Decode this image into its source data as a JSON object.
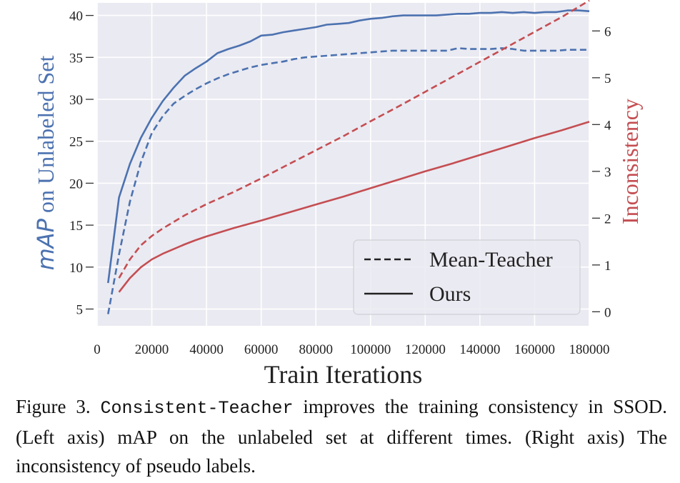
{
  "chart_data": {
    "type": "line",
    "xlabel": "Train Iterations",
    "ylabel_left_italic": "mAP",
    "ylabel_left_rest": " on Unlabeled Set",
    "ylabel_right": "Inconsistency",
    "xlim": [
      0,
      180000
    ],
    "ylim_left": [
      3,
      41.5
    ],
    "ylim_right": [
      -0.3,
      6.6
    ],
    "xticks": [
      0,
      20000,
      40000,
      60000,
      80000,
      100000,
      120000,
      140000,
      160000,
      180000
    ],
    "yticks_left": [
      5,
      10,
      15,
      20,
      25,
      30,
      35,
      40
    ],
    "yticks_right": [
      0,
      1,
      2,
      3,
      4,
      5,
      6
    ],
    "grid": true,
    "legend_position": "bottom-right",
    "legend": [
      {
        "label": "Mean-Teacher",
        "style": "dashed"
      },
      {
        "label": "Ours",
        "style": "solid"
      }
    ],
    "colors": {
      "map": "#4c72b0",
      "inconsistency": "#c44e52",
      "background": "#eaeaf2"
    },
    "series": [
      {
        "metric": "mAP",
        "axis": "left",
        "method": "Ours",
        "style": "solid",
        "x": [
          4000,
          8000,
          12000,
          16000,
          20000,
          24000,
          28000,
          32000,
          36000,
          40000,
          44000,
          48000,
          52000,
          56000,
          60000,
          64000,
          68000,
          72000,
          76000,
          80000,
          84000,
          88000,
          92000,
          96000,
          100000,
          104000,
          108000,
          112000,
          116000,
          120000,
          124000,
          128000,
          132000,
          136000,
          140000,
          144000,
          148000,
          152000,
          156000,
          160000,
          164000,
          168000,
          172000,
          176000,
          180000
        ],
        "y": [
          8.1,
          18.3,
          22.3,
          25.4,
          27.8,
          29.8,
          31.4,
          32.8,
          33.7,
          34.5,
          35.5,
          36.0,
          36.4,
          36.9,
          37.6,
          37.7,
          38.0,
          38.2,
          38.4,
          38.6,
          38.9,
          39.0,
          39.1,
          39.4,
          39.6,
          39.7,
          39.9,
          40.0,
          40.0,
          40.0,
          40.0,
          40.1,
          40.2,
          40.2,
          40.3,
          40.3,
          40.4,
          40.3,
          40.4,
          40.3,
          40.4,
          40.4,
          40.6,
          40.6,
          40.5
        ]
      },
      {
        "metric": "mAP",
        "axis": "left",
        "method": "Mean-Teacher",
        "style": "dashed",
        "x": [
          4000,
          8000,
          12000,
          16000,
          20000,
          24000,
          28000,
          32000,
          36000,
          40000,
          44000,
          48000,
          52000,
          56000,
          60000,
          64000,
          68000,
          72000,
          76000,
          80000,
          84000,
          88000,
          92000,
          96000,
          100000,
          104000,
          108000,
          112000,
          116000,
          120000,
          124000,
          128000,
          132000,
          136000,
          140000,
          144000,
          148000,
          152000,
          156000,
          160000,
          164000,
          168000,
          172000,
          176000,
          180000
        ],
        "y": [
          4.4,
          11.5,
          17.8,
          22.5,
          26.0,
          28.0,
          29.5,
          30.4,
          31.2,
          31.9,
          32.5,
          33.0,
          33.4,
          33.8,
          34.1,
          34.3,
          34.5,
          34.8,
          35.0,
          35.1,
          35.2,
          35.3,
          35.4,
          35.5,
          35.6,
          35.7,
          35.8,
          35.8,
          35.8,
          35.8,
          35.8,
          35.8,
          36.1,
          36.0,
          36.0,
          36.0,
          36.1,
          36.0,
          35.8,
          35.8,
          35.8,
          35.8,
          35.9,
          35.9,
          35.9
        ]
      },
      {
        "metric": "Inconsistency",
        "axis": "right",
        "method": "Ours",
        "style": "solid",
        "x": [
          8000,
          12000,
          16000,
          20000,
          24000,
          28000,
          32000,
          36000,
          40000,
          50000,
          60000,
          70000,
          80000,
          90000,
          100000,
          110000,
          120000,
          130000,
          140000,
          150000,
          160000,
          170000,
          180000
        ],
        "y": [
          0.42,
          0.72,
          0.95,
          1.12,
          1.24,
          1.34,
          1.44,
          1.53,
          1.61,
          1.79,
          1.95,
          2.12,
          2.29,
          2.46,
          2.64,
          2.82,
          3.0,
          3.17,
          3.35,
          3.53,
          3.71,
          3.88,
          4.06
        ]
      },
      {
        "metric": "Inconsistency",
        "axis": "right",
        "method": "Mean-Teacher",
        "style": "dashed",
        "x": [
          8000,
          12000,
          16000,
          20000,
          24000,
          28000,
          32000,
          36000,
          40000,
          50000,
          60000,
          70000,
          80000,
          90000,
          100000,
          110000,
          120000,
          130000,
          140000,
          150000,
          160000,
          170000,
          180000
        ],
        "y": [
          0.72,
          1.12,
          1.42,
          1.62,
          1.78,
          1.92,
          2.06,
          2.18,
          2.3,
          2.56,
          2.85,
          3.15,
          3.45,
          3.75,
          4.07,
          4.38,
          4.7,
          5.02,
          5.34,
          5.66,
          5.98,
          6.3,
          6.65
        ]
      }
    ]
  },
  "caption": {
    "label": "Figure 3.",
    "method": "Consistent-Teacher",
    "text": "improves the training consistency in SSOD. (Left axis) mAP on the unlabeled set at different times. (Right axis) The inconsistency of pseudo labels."
  }
}
